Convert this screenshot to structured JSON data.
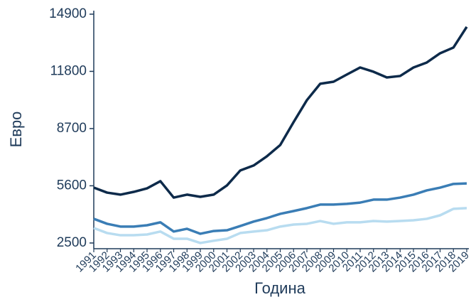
{
  "chart_data": {
    "type": "line",
    "x_label": "Година",
    "y_label": "Евро",
    "categories": [
      "1991",
      "1992",
      "1993",
      "1994",
      "1995",
      "1996",
      "1997",
      "1998",
      "1999",
      "2000",
      "2001",
      "2002",
      "2003",
      "2004",
      "2005",
      "2006",
      "2007",
      "2008",
      "2009",
      "2010",
      "2011",
      "2012",
      "2013",
      "2014",
      "2015",
      "2016",
      "2017",
      "2018",
      "2019"
    ],
    "series": [
      {
        "color": "#0d2a4a",
        "values": [
          5500,
          5230,
          5120,
          5270,
          5460,
          5850,
          4960,
          5120,
          5000,
          5120,
          5620,
          6430,
          6700,
          7200,
          7810,
          9050,
          10240,
          11130,
          11240,
          11630,
          12010,
          11780,
          11470,
          11550,
          12010,
          12280,
          12780,
          13090,
          14210
        ]
      },
      {
        "color": "#3a7db5",
        "values": [
          3810,
          3540,
          3390,
          3390,
          3460,
          3620,
          3120,
          3270,
          3000,
          3150,
          3190,
          3420,
          3660,
          3850,
          4080,
          4230,
          4390,
          4580,
          4580,
          4620,
          4690,
          4850,
          4850,
          4960,
          5120,
          5350,
          5500,
          5700,
          5730
        ]
      },
      {
        "color": "#b8dcf0",
        "values": [
          3310,
          3040,
          2920,
          2920,
          2960,
          3120,
          2730,
          2730,
          2500,
          2620,
          2730,
          3040,
          3120,
          3190,
          3390,
          3500,
          3540,
          3690,
          3540,
          3620,
          3620,
          3690,
          3660,
          3690,
          3730,
          3810,
          4000,
          4350,
          4390
        ]
      }
    ],
    "ylim": [
      2190,
      15090
    ],
    "yticks": [
      2500,
      5600,
      8700,
      11800,
      14900
    ]
  }
}
